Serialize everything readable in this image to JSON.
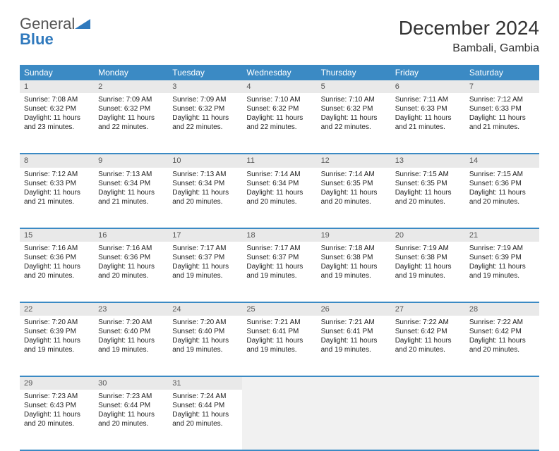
{
  "brand": {
    "part1": "General",
    "part2": "Blue"
  },
  "title": "December 2024",
  "location": "Bambali, Gambia",
  "accent_color": "#3b8ac4",
  "dow_bg": "#3b8ac4",
  "daynum_bg": "#e9e9e9",
  "rule_color": "#3b8ac4",
  "days_of_week": [
    "Sunday",
    "Monday",
    "Tuesday",
    "Wednesday",
    "Thursday",
    "Friday",
    "Saturday"
  ],
  "weeks": [
    [
      {
        "n": "1",
        "sr": "Sunrise: 7:08 AM",
        "ss": "Sunset: 6:32 PM",
        "d1": "Daylight: 11 hours",
        "d2": "and 23 minutes."
      },
      {
        "n": "2",
        "sr": "Sunrise: 7:09 AM",
        "ss": "Sunset: 6:32 PM",
        "d1": "Daylight: 11 hours",
        "d2": "and 22 minutes."
      },
      {
        "n": "3",
        "sr": "Sunrise: 7:09 AM",
        "ss": "Sunset: 6:32 PM",
        "d1": "Daylight: 11 hours",
        "d2": "and 22 minutes."
      },
      {
        "n": "4",
        "sr": "Sunrise: 7:10 AM",
        "ss": "Sunset: 6:32 PM",
        "d1": "Daylight: 11 hours",
        "d2": "and 22 minutes."
      },
      {
        "n": "5",
        "sr": "Sunrise: 7:10 AM",
        "ss": "Sunset: 6:32 PM",
        "d1": "Daylight: 11 hours",
        "d2": "and 22 minutes."
      },
      {
        "n": "6",
        "sr": "Sunrise: 7:11 AM",
        "ss": "Sunset: 6:33 PM",
        "d1": "Daylight: 11 hours",
        "d2": "and 21 minutes."
      },
      {
        "n": "7",
        "sr": "Sunrise: 7:12 AM",
        "ss": "Sunset: 6:33 PM",
        "d1": "Daylight: 11 hours",
        "d2": "and 21 minutes."
      }
    ],
    [
      {
        "n": "8",
        "sr": "Sunrise: 7:12 AM",
        "ss": "Sunset: 6:33 PM",
        "d1": "Daylight: 11 hours",
        "d2": "and 21 minutes."
      },
      {
        "n": "9",
        "sr": "Sunrise: 7:13 AM",
        "ss": "Sunset: 6:34 PM",
        "d1": "Daylight: 11 hours",
        "d2": "and 21 minutes."
      },
      {
        "n": "10",
        "sr": "Sunrise: 7:13 AM",
        "ss": "Sunset: 6:34 PM",
        "d1": "Daylight: 11 hours",
        "d2": "and 20 minutes."
      },
      {
        "n": "11",
        "sr": "Sunrise: 7:14 AM",
        "ss": "Sunset: 6:34 PM",
        "d1": "Daylight: 11 hours",
        "d2": "and 20 minutes."
      },
      {
        "n": "12",
        "sr": "Sunrise: 7:14 AM",
        "ss": "Sunset: 6:35 PM",
        "d1": "Daylight: 11 hours",
        "d2": "and 20 minutes."
      },
      {
        "n": "13",
        "sr": "Sunrise: 7:15 AM",
        "ss": "Sunset: 6:35 PM",
        "d1": "Daylight: 11 hours",
        "d2": "and 20 minutes."
      },
      {
        "n": "14",
        "sr": "Sunrise: 7:15 AM",
        "ss": "Sunset: 6:36 PM",
        "d1": "Daylight: 11 hours",
        "d2": "and 20 minutes."
      }
    ],
    [
      {
        "n": "15",
        "sr": "Sunrise: 7:16 AM",
        "ss": "Sunset: 6:36 PM",
        "d1": "Daylight: 11 hours",
        "d2": "and 20 minutes."
      },
      {
        "n": "16",
        "sr": "Sunrise: 7:16 AM",
        "ss": "Sunset: 6:36 PM",
        "d1": "Daylight: 11 hours",
        "d2": "and 20 minutes."
      },
      {
        "n": "17",
        "sr": "Sunrise: 7:17 AM",
        "ss": "Sunset: 6:37 PM",
        "d1": "Daylight: 11 hours",
        "d2": "and 19 minutes."
      },
      {
        "n": "18",
        "sr": "Sunrise: 7:17 AM",
        "ss": "Sunset: 6:37 PM",
        "d1": "Daylight: 11 hours",
        "d2": "and 19 minutes."
      },
      {
        "n": "19",
        "sr": "Sunrise: 7:18 AM",
        "ss": "Sunset: 6:38 PM",
        "d1": "Daylight: 11 hours",
        "d2": "and 19 minutes."
      },
      {
        "n": "20",
        "sr": "Sunrise: 7:19 AM",
        "ss": "Sunset: 6:38 PM",
        "d1": "Daylight: 11 hours",
        "d2": "and 19 minutes."
      },
      {
        "n": "21",
        "sr": "Sunrise: 7:19 AM",
        "ss": "Sunset: 6:39 PM",
        "d1": "Daylight: 11 hours",
        "d2": "and 19 minutes."
      }
    ],
    [
      {
        "n": "22",
        "sr": "Sunrise: 7:20 AM",
        "ss": "Sunset: 6:39 PM",
        "d1": "Daylight: 11 hours",
        "d2": "and 19 minutes."
      },
      {
        "n": "23",
        "sr": "Sunrise: 7:20 AM",
        "ss": "Sunset: 6:40 PM",
        "d1": "Daylight: 11 hours",
        "d2": "and 19 minutes."
      },
      {
        "n": "24",
        "sr": "Sunrise: 7:20 AM",
        "ss": "Sunset: 6:40 PM",
        "d1": "Daylight: 11 hours",
        "d2": "and 19 minutes."
      },
      {
        "n": "25",
        "sr": "Sunrise: 7:21 AM",
        "ss": "Sunset: 6:41 PM",
        "d1": "Daylight: 11 hours",
        "d2": "and 19 minutes."
      },
      {
        "n": "26",
        "sr": "Sunrise: 7:21 AM",
        "ss": "Sunset: 6:41 PM",
        "d1": "Daylight: 11 hours",
        "d2": "and 19 minutes."
      },
      {
        "n": "27",
        "sr": "Sunrise: 7:22 AM",
        "ss": "Sunset: 6:42 PM",
        "d1": "Daylight: 11 hours",
        "d2": "and 20 minutes."
      },
      {
        "n": "28",
        "sr": "Sunrise: 7:22 AM",
        "ss": "Sunset: 6:42 PM",
        "d1": "Daylight: 11 hours",
        "d2": "and 20 minutes."
      }
    ],
    [
      {
        "n": "29",
        "sr": "Sunrise: 7:23 AM",
        "ss": "Sunset: 6:43 PM",
        "d1": "Daylight: 11 hours",
        "d2": "and 20 minutes."
      },
      {
        "n": "30",
        "sr": "Sunrise: 7:23 AM",
        "ss": "Sunset: 6:44 PM",
        "d1": "Daylight: 11 hours",
        "d2": "and 20 minutes."
      },
      {
        "n": "31",
        "sr": "Sunrise: 7:24 AM",
        "ss": "Sunset: 6:44 PM",
        "d1": "Daylight: 11 hours",
        "d2": "and 20 minutes."
      },
      null,
      null,
      null,
      null
    ]
  ]
}
